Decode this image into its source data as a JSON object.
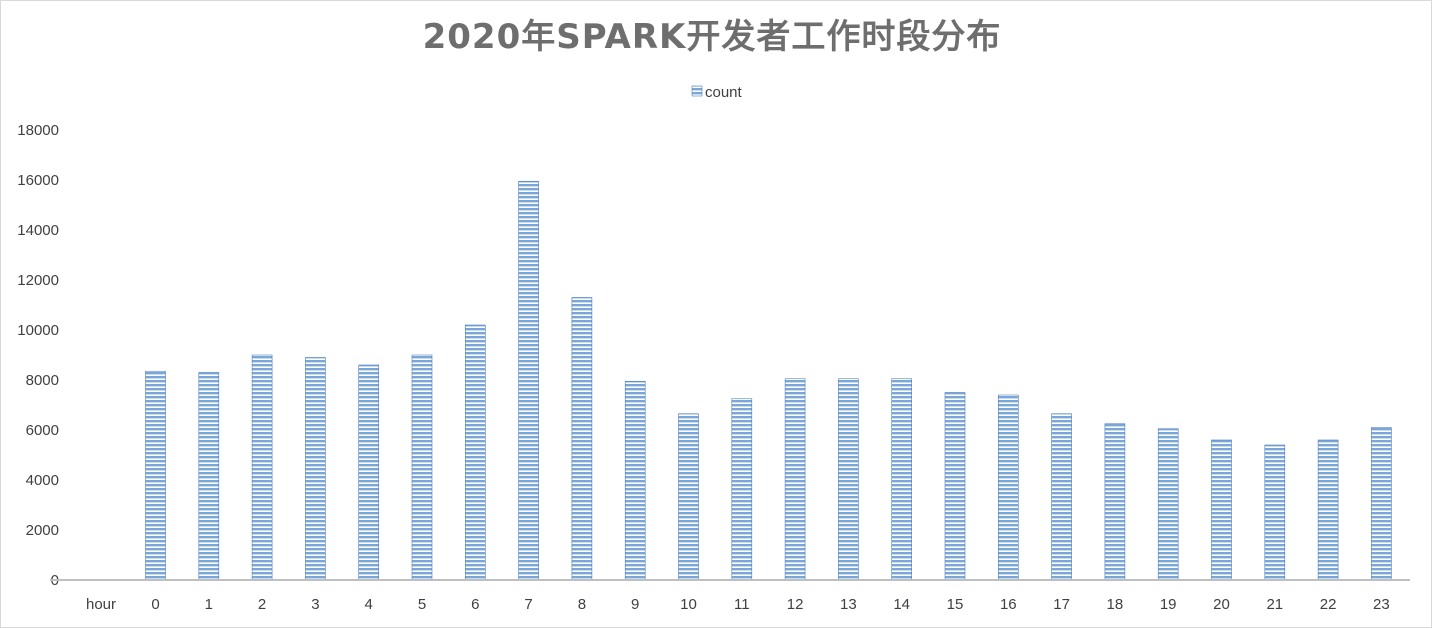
{
  "chart_data": {
    "type": "bar",
    "title": "2020年SPARK开发者工作时段分布",
    "xlabel": "hour",
    "ylabel": "",
    "categories": [
      "0",
      "1",
      "2",
      "3",
      "4",
      "5",
      "6",
      "7",
      "8",
      "9",
      "10",
      "11",
      "12",
      "13",
      "14",
      "15",
      "16",
      "17",
      "18",
      "19",
      "20",
      "21",
      "22",
      "23"
    ],
    "series": [
      {
        "name": "count",
        "values": [
          8350,
          8300,
          9000,
          8900,
          8600,
          9000,
          10200,
          15950,
          11300,
          7950,
          6650,
          7250,
          8050,
          8050,
          8050,
          7500,
          7400,
          6650,
          6250,
          6050,
          5600,
          5400,
          5600,
          6100
        ]
      }
    ],
    "ylim": [
      0,
      18000
    ],
    "yticks": [
      "0",
      "2000",
      "4000",
      "6000",
      "8000",
      "10000",
      "12000",
      "14000",
      "16000",
      "18000"
    ],
    "grid": false,
    "legend_position": "top-center",
    "colors": {
      "bar_fill": "#7aa6d8",
      "bar_stripe": "#ffffff",
      "bar_border": "#4f7fbf",
      "axis_line": "#bfbfbf",
      "title": "#6e6e6e",
      "text": "#404040"
    }
  }
}
